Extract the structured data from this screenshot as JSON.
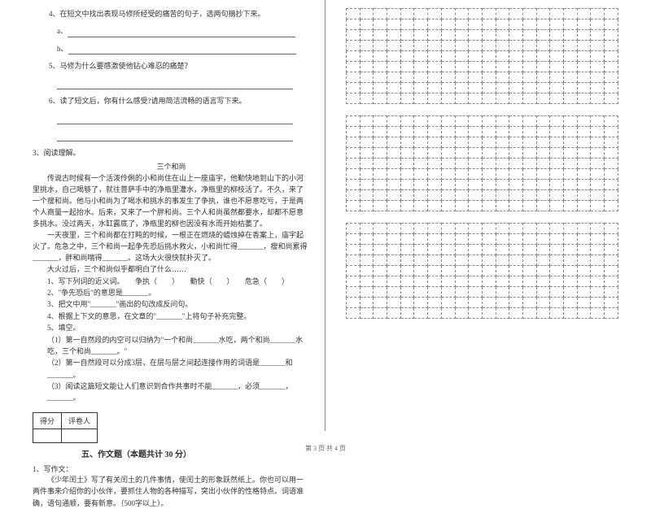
{
  "left": {
    "q4": {
      "text": "4、在短文中找出表现马修所经受的痛苦的句子，选两句摘抄下来。",
      "line_a": "a、",
      "line_b": "b、"
    },
    "q5": {
      "text": "5、马修为什么要感激使他钻心难忍的痛楚？"
    },
    "q6": {
      "text": "6、读了短文后，你有什么感受?请用简洁流畅的语言写下来。"
    },
    "section3": {
      "number": "3、阅读理解。",
      "title": "三个和尚",
      "para1": "传说古时候有一个活泼伶俐的小和尚住在山上一座庙宇，他勤快地到山下的小河里挑水，自己喝够了，就往菩萨手中的净瓶里灌水，净瓶里的柳枝活了。不久，来了一个瘦和尚。他与小和尚为了喝水和挑水的事发生了争执，谁也不愿意吃亏，于是两个人商量一起抬水。后来，又来了一个胖和尚。三个人和尚虽然都要水，却都不愿意多挑水。没过两天，水缸露底了，净瓶里的柳也因没有水而开始枯萎了。",
      "para2": "一天夜里，三个和尚都在打盹的时候，一根正在燃烧的蜡烛掉在香案上，庙宇起火了。危急之中，三个和尚一起争先恐后挑水救火，小和尚忙得_______，瘦和尚累得_______，胖和尚喘得_______。这场大火很快就扑灭了。",
      "para3": "大火过后，三个和尚似乎都明白了什么……",
      "sq1": "1、写下列词的近义词。　　争执（　　）　　勤快（　　）　　危急（　　）",
      "sq2": "2、\"争先恐后\"的意思是_______。",
      "sq3": "3、把文中用\"_______\"画出的句改成反问句。",
      "sq4": "4、根据上下文的意思，在文章的\"_______\"上将句子补充完整。",
      "sq5": "5、填空。",
      "sq5_1": "（1）第一自然段的内空可以归纳为\"一个和尚_______水吃，两个和尚_______水吃，三个和尚_______。\"",
      "sq5_2": "（2）第一自然段可以分成3层，在层与层之间起连接作用的词语是_______和_______。",
      "sq5_3": "（3）阅读这篇短文能让人们意识到合作共事时不能_______，必须_______，_______。"
    },
    "score_table": {
      "header1": "得分",
      "header2": "评卷人"
    },
    "section5": {
      "title": "五、作文题（本题共计 30 分）",
      "q1_label": "1、写作文：",
      "content": "《少年闰土》写了有关闰土的几件事情，使闰土的形象跃然纸上。你也可以用一两件事来介绍你的小伙伴，要抓住人物的各种描写，突出小伙伴的性格特点。词语准确，语句通顺，要有新意。（500字以上）。"
    }
  },
  "grid": {
    "rows": 9,
    "cols": 20,
    "num_grids": 3
  },
  "footer": "第 3 页 共 4 页",
  "styling": {
    "background": "#ffffff",
    "text_color": "#333333",
    "border_color": "#888888",
    "font_size": 9
  }
}
